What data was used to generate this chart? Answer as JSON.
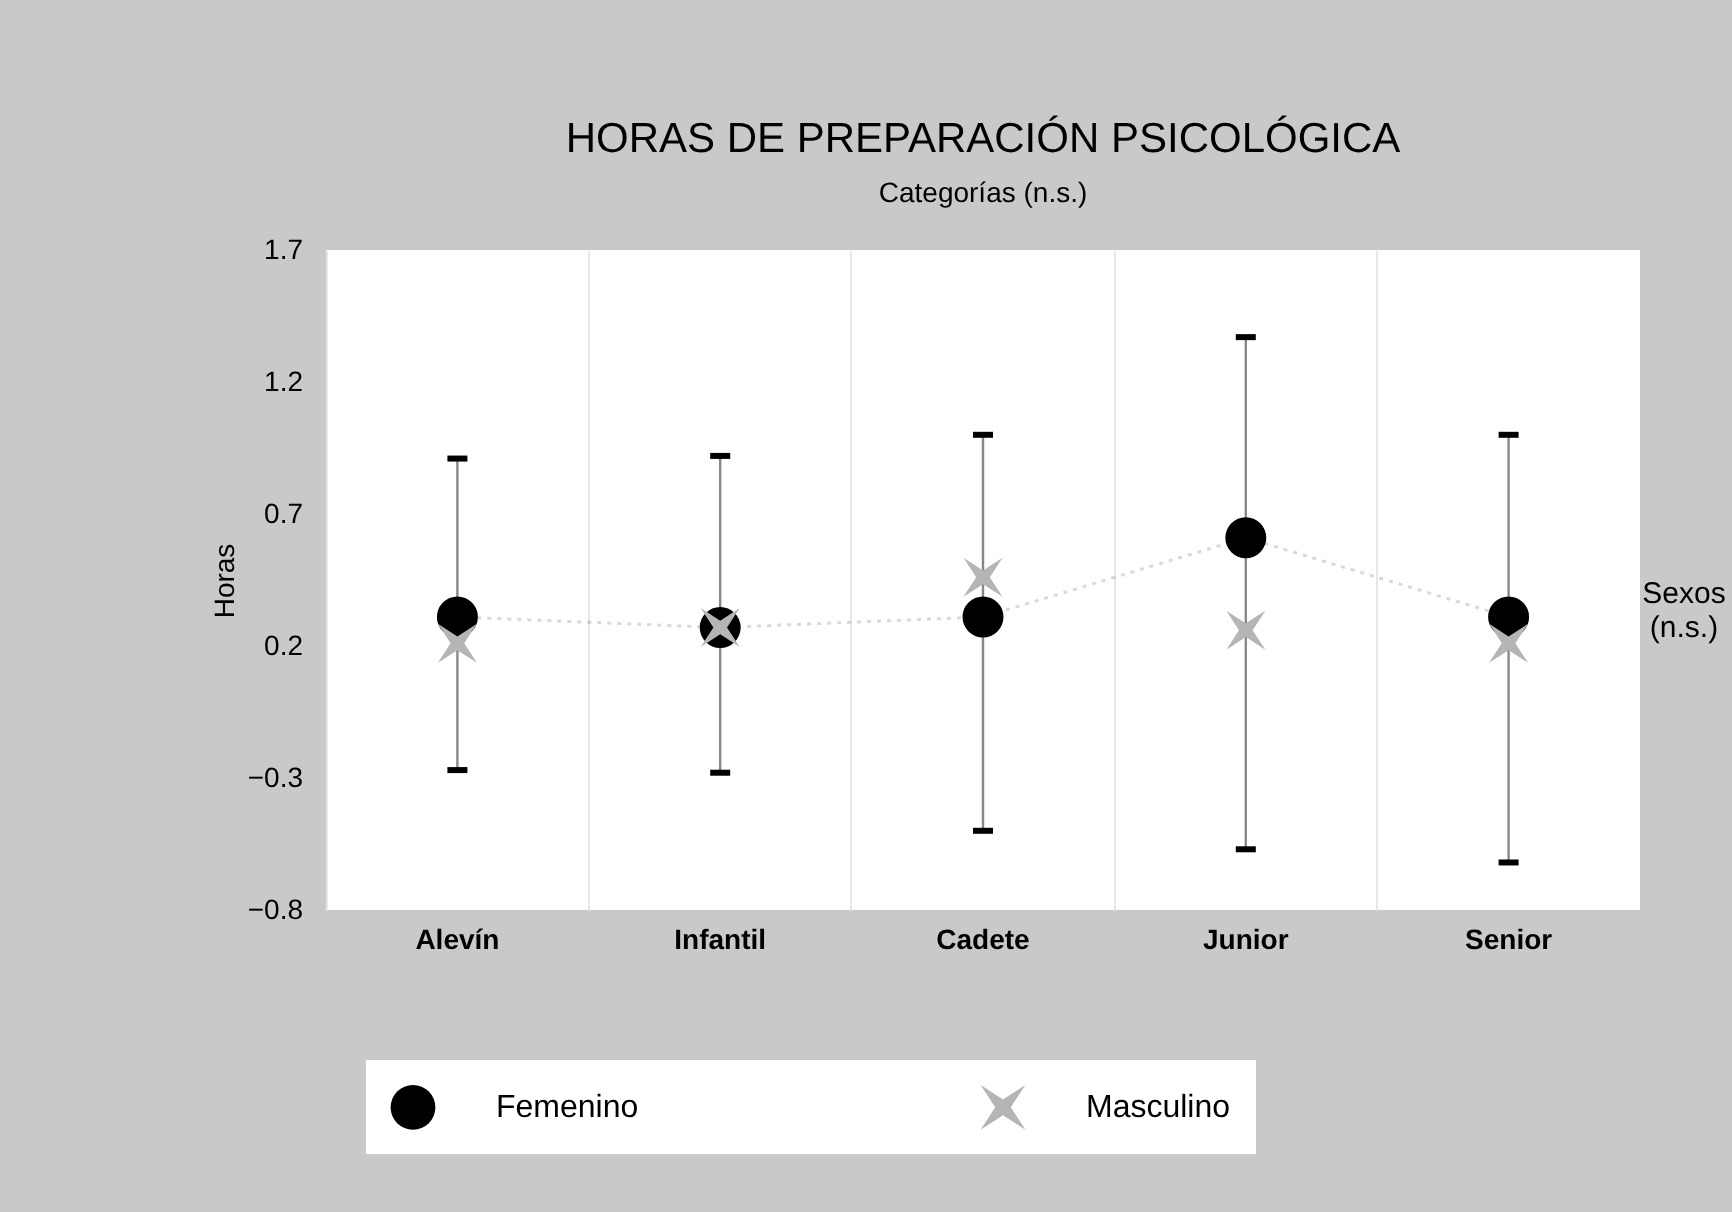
{
  "chart_data": {
    "type": "scatter",
    "title": "HORAS DE PREPARACIÓN PSICOLÓGICA",
    "subtitle": "Categorías (n.s.)",
    "ylabel": "Horas",
    "categories": [
      "Alevín",
      "Infantil",
      "Cadete",
      "Junior",
      "Senior"
    ],
    "series": [
      {
        "name": "Femenino",
        "type": "line",
        "color": "#000000",
        "marker": "circle",
        "line_style": "dotted",
        "values": [
          0.31,
          0.27,
          0.31,
          0.61,
          0.31
        ],
        "errors": [
          [
            -0.27,
            0.91
          ],
          [
            -0.28,
            0.92
          ],
          [
            -0.5,
            1.0
          ],
          [
            -0.57,
            1.37
          ],
          [
            -0.62,
            1.0
          ]
        ]
      },
      {
        "name": "Masculino",
        "type": "scatter",
        "color": "#b5b5b5",
        "marker": "cross",
        "values": [
          0.21,
          0.27,
          0.46,
          0.26,
          0.21
        ]
      }
    ],
    "ylim": [
      -0.8,
      1.7
    ],
    "yticks": [
      -0.8,
      -0.3,
      0.2,
      0.7,
      1.2,
      1.7
    ],
    "grid": "x",
    "legend": "bottom",
    "annotations": [
      "Sexos (n.s.)"
    ]
  }
}
